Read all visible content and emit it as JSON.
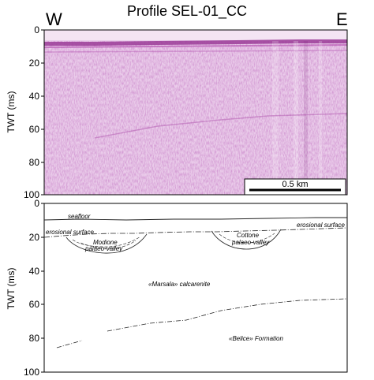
{
  "title": "Profile SEL-01_CC",
  "direction_left": "W",
  "direction_right": "E",
  "top_panel": {
    "ylabel": "TWT (ms)",
    "yticks": [
      "0",
      "20",
      "40",
      "60",
      "80",
      "100"
    ],
    "scale_bar_label": "0.5 km"
  },
  "bottom_panel": {
    "ylabel": "TWT (ms)",
    "yticks": [
      "0",
      "20",
      "40",
      "60",
      "80",
      "100"
    ],
    "labels": {
      "seafloor": "seafloor",
      "erosional_left": "erosional surface",
      "erosional_right": "erosional surface",
      "modione": "Modione",
      "modione_valley": "palaeo-valley",
      "cottone": "Cottone",
      "cottone_valley": "palaeo-valley",
      "marsala": "«Marsala» calcarenite",
      "belice": "«Belice» Formation"
    }
  },
  "colors": {
    "seismic_base": "#e9c8e6",
    "seismic_dark": "#7a1f7a",
    "line": "#222222"
  }
}
